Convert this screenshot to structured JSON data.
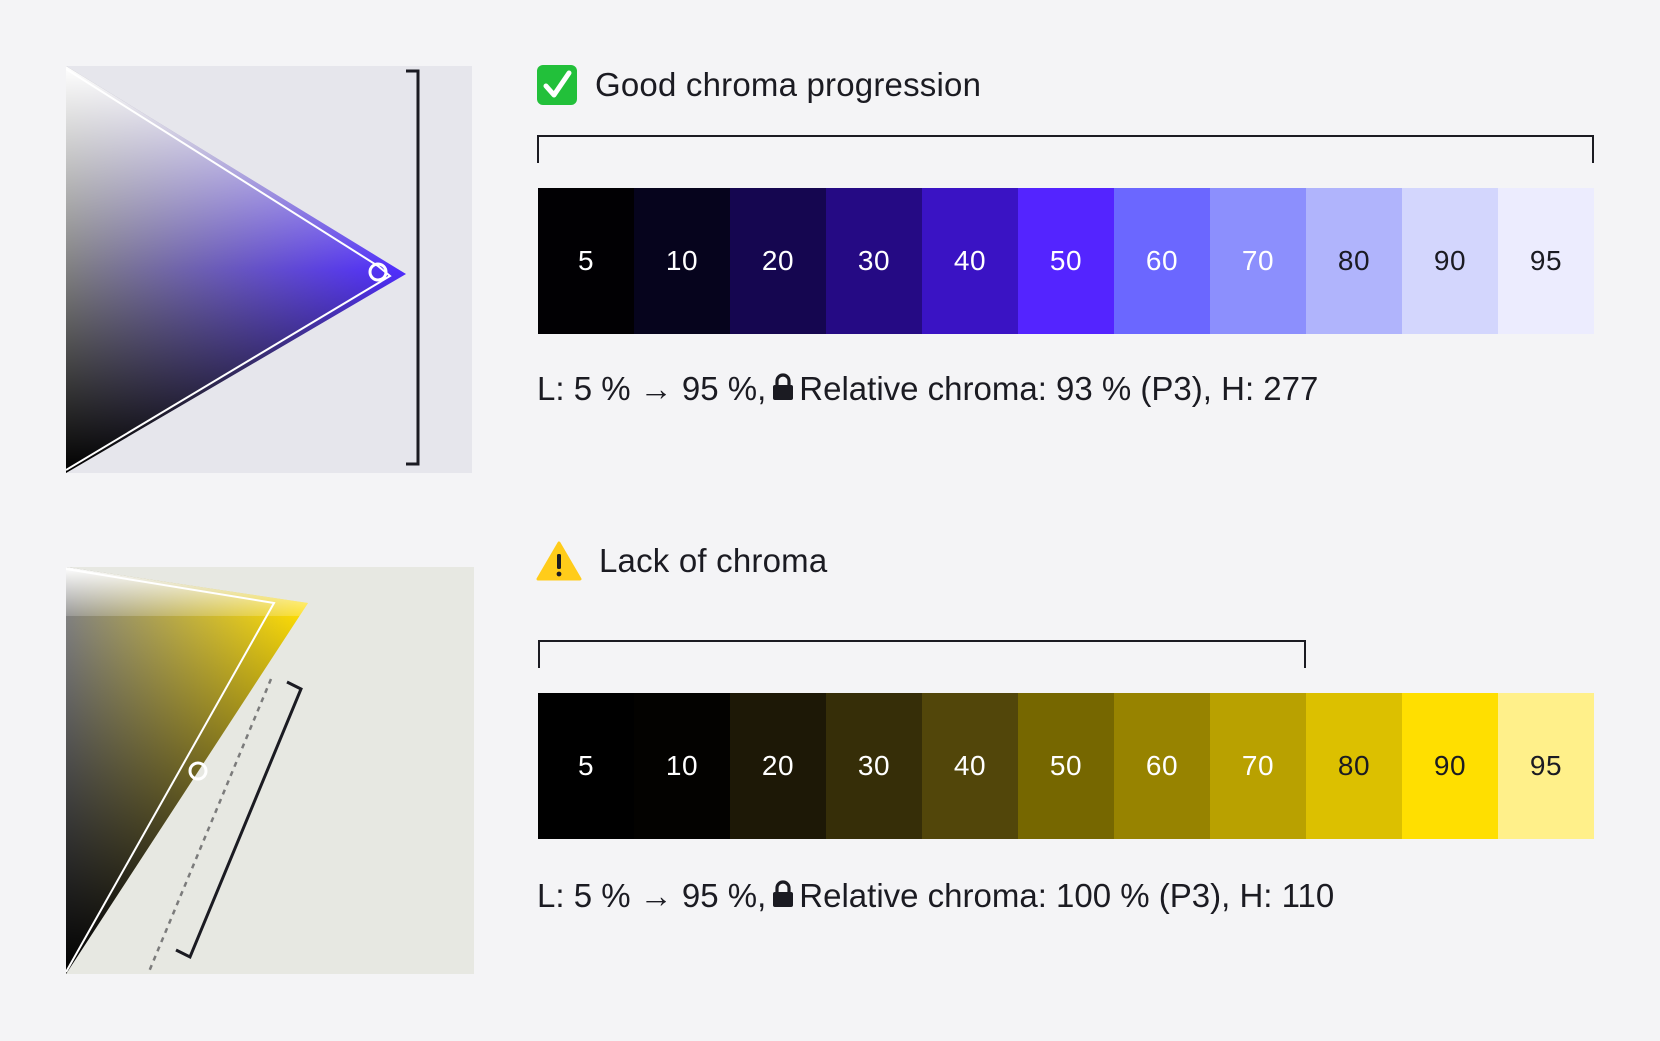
{
  "top": {
    "title": "Good chroma progression",
    "status_icon": "check-icon",
    "status_color": "#22c03a",
    "gamut_color": "#4f2cff",
    "gamut_background": "#e6e6ec",
    "swatches": [
      {
        "label": "5",
        "color": "#010003",
        "text": "#ffffff"
      },
      {
        "label": "10",
        "color": "#06041d",
        "text": "#ffffff"
      },
      {
        "label": "20",
        "color": "#150650",
        "text": "#ffffff"
      },
      {
        "label": "30",
        "color": "#250a84",
        "text": "#ffffff"
      },
      {
        "label": "40",
        "color": "#3a13c4",
        "text": "#ffffff"
      },
      {
        "label": "50",
        "color": "#5424ff",
        "text": "#ffffff"
      },
      {
        "label": "60",
        "color": "#6b67ff",
        "text": "#ffffff"
      },
      {
        "label": "70",
        "color": "#8c8ffd",
        "text": "#ffffff"
      },
      {
        "label": "80",
        "color": "#b0b4fc",
        "text": "#1b1b22"
      },
      {
        "label": "90",
        "color": "#d3d6fd",
        "text": "#1b1b22"
      },
      {
        "label": "95",
        "color": "#ececfe",
        "text": "#1b1b22"
      }
    ],
    "formula": {
      "lightness": "L: 5 % → 95 %,",
      "lock_icon": "lock-icon",
      "chroma": "Relative chroma: 93 % (P3), H: 277"
    }
  },
  "bottom": {
    "title": "Lack of chroma",
    "status_icon": "warning-icon",
    "status_color": "#ffcc1a",
    "gamut_color": "#ffdd00",
    "gamut_background": "#e7e8e2",
    "swatches": [
      {
        "label": "5",
        "color": "#000000",
        "text": "#ffffff"
      },
      {
        "label": "10",
        "color": "#030200",
        "text": "#ffffff"
      },
      {
        "label": "20",
        "color": "#1d1806",
        "text": "#ffffff"
      },
      {
        "label": "30",
        "color": "#362e08",
        "text": "#ffffff"
      },
      {
        "label": "40",
        "color": "#52460a",
        "text": "#ffffff"
      },
      {
        "label": "50",
        "color": "#766700",
        "text": "#ffffff"
      },
      {
        "label": "60",
        "color": "#978300",
        "text": "#ffffff"
      },
      {
        "label": "70",
        "color": "#b9a100",
        "text": "#ffffff"
      },
      {
        "label": "80",
        "color": "#dcc000",
        "text": "#1b1b22"
      },
      {
        "label": "90",
        "color": "#ffdf00",
        "text": "#1b1b22"
      },
      {
        "label": "95",
        "color": "#fff08a",
        "text": "#1b1b22"
      }
    ],
    "formula": {
      "lightness": "L: 5 % → 95 %,",
      "lock_icon": "lock-icon",
      "chroma": "Relative chroma: 100 % (P3), H: 110"
    }
  }
}
